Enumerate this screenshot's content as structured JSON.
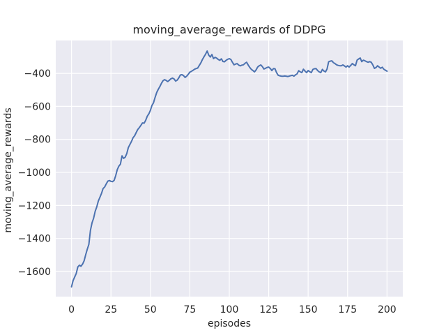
{
  "window": {
    "background": "#ffffff"
  },
  "chart_data": {
    "type": "line",
    "title": "moving_average_rewards of DDPG",
    "xlabel": "episodes",
    "ylabel": "moving_average_rewards",
    "x_ticks": [
      0,
      25,
      50,
      75,
      100,
      125,
      150,
      175,
      200
    ],
    "x_tick_labels": [
      "0",
      "25",
      "50",
      "75",
      "100",
      "125",
      "150",
      "175",
      "200"
    ],
    "y_ticks": [
      -400,
      -600,
      -800,
      -1000,
      -1200,
      -1400,
      -1600
    ],
    "y_tick_labels": [
      "−400",
      "−600",
      "−800",
      "−1000",
      "−1200",
      "−1400",
      "−1600"
    ],
    "xlim": [
      -10,
      210
    ],
    "ylim": [
      -1752,
      -201
    ],
    "grid": true,
    "legend": "none",
    "style": {
      "figure_background": "#ffffff",
      "plot_background": "#eaeaf2",
      "grid_color": "#ffffff",
      "line_color": "#4c72b0",
      "text_color": "#262626"
    },
    "series": [
      {
        "name": "moving_average_rewards",
        "x_start": 0,
        "x_step": 1,
        "values": [
          -1693,
          -1655,
          -1633,
          -1612,
          -1572,
          -1562,
          -1568,
          -1555,
          -1535,
          -1498,
          -1464,
          -1436,
          -1350,
          -1305,
          -1278,
          -1235,
          -1208,
          -1173,
          -1150,
          -1128,
          -1098,
          -1088,
          -1070,
          -1053,
          -1049,
          -1054,
          -1056,
          -1048,
          -1020,
          -983,
          -962,
          -950,
          -899,
          -915,
          -908,
          -886,
          -850,
          -831,
          -812,
          -790,
          -778,
          -759,
          -740,
          -728,
          -715,
          -700,
          -702,
          -685,
          -660,
          -645,
          -624,
          -594,
          -578,
          -545,
          -516,
          -497,
          -480,
          -460,
          -445,
          -438,
          -443,
          -450,
          -442,
          -433,
          -429,
          -434,
          -447,
          -441,
          -427,
          -410,
          -408,
          -414,
          -425,
          -417,
          -406,
          -393,
          -388,
          -382,
          -375,
          -371,
          -368,
          -352,
          -336,
          -316,
          -299,
          -284,
          -265,
          -290,
          -301,
          -286,
          -311,
          -303,
          -308,
          -316,
          -321,
          -312,
          -328,
          -330,
          -321,
          -315,
          -311,
          -316,
          -333,
          -348,
          -344,
          -341,
          -350,
          -355,
          -350,
          -348,
          -339,
          -333,
          -350,
          -364,
          -376,
          -383,
          -391,
          -379,
          -362,
          -354,
          -349,
          -359,
          -374,
          -369,
          -364,
          -362,
          -371,
          -383,
          -371,
          -372,
          -396,
          -412,
          -415,
          -417,
          -418,
          -416,
          -417,
          -419,
          -417,
          -414,
          -412,
          -417,
          -409,
          -403,
          -384,
          -391,
          -396,
          -375,
          -386,
          -396,
          -383,
          -390,
          -396,
          -376,
          -372,
          -371,
          -383,
          -391,
          -396,
          -376,
          -386,
          -391,
          -374,
          -330,
          -326,
          -324,
          -335,
          -341,
          -348,
          -352,
          -354,
          -354,
          -349,
          -355,
          -362,
          -354,
          -362,
          -352,
          -341,
          -348,
          -354,
          -320,
          -313,
          -307,
          -329,
          -320,
          -324,
          -329,
          -333,
          -329,
          -333,
          -349,
          -370,
          -365,
          -354,
          -362,
          -369,
          -363,
          -375,
          -381,
          -387
        ]
      }
    ]
  }
}
